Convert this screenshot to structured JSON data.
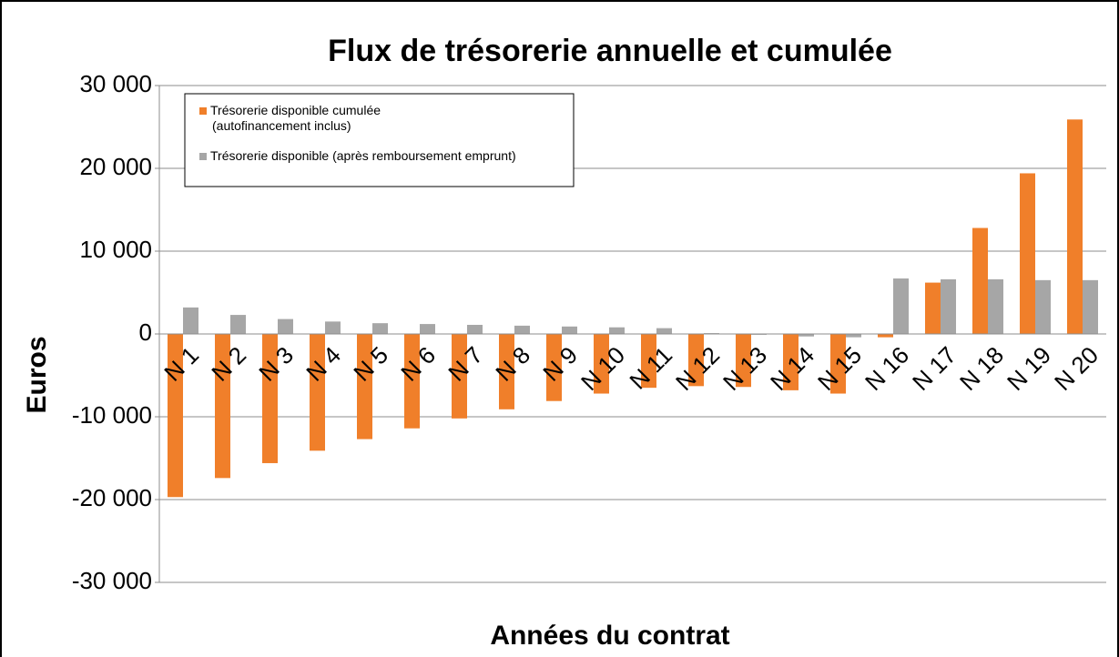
{
  "chart_data": {
    "type": "bar",
    "title": "Flux de trésorerie annuelle et cumulée",
    "x_label": "Années du contrat",
    "y_label": "Euros",
    "categories": [
      "N 1",
      "N 2",
      "N 3",
      "N 4",
      "N 5",
      "N 6",
      "N 7",
      "N 8",
      "N 9",
      "N 10",
      "N 11",
      "N 12",
      "N 13",
      "N 14",
      "N 15",
      "N 16",
      "N 17",
      "N 18",
      "N 19",
      "N 20"
    ],
    "series": [
      {
        "name": "Trésorerie disponible cumulée\n(autofinancement inclus)",
        "color": "#f07f2a",
        "values": [
          -19700,
          -17400,
          -15600,
          -14100,
          -12700,
          -11400,
          -10200,
          -9100,
          -8100,
          -7200,
          -6500,
          -6300,
          -6400,
          -6800,
          -7200,
          -400,
          6200,
          12800,
          19400,
          25900
        ]
      },
      {
        "name": "Trésorerie disponible (après remboursement emprunt)",
        "color": "#a6a6a6",
        "values": [
          3200,
          2300,
          1800,
          1500,
          1300,
          1200,
          1100,
          1000,
          900,
          800,
          700,
          100,
          -100,
          -300,
          -400,
          6700,
          6600,
          6600,
          6500,
          6500
        ]
      }
    ],
    "ylim": [
      -30000,
      30000
    ],
    "yticks": [
      {
        "value": -30000,
        "label": "-30 000"
      },
      {
        "value": -20000,
        "label": "-20 000"
      },
      {
        "value": -10000,
        "label": "-10 000"
      },
      0,
      {
        "value": 10000,
        "label": "10 000"
      },
      {
        "value": 20000,
        "label": "20 000"
      },
      {
        "value": 30000,
        "label": "30 000"
      }
    ],
    "grid": true,
    "legend": "top-left"
  }
}
